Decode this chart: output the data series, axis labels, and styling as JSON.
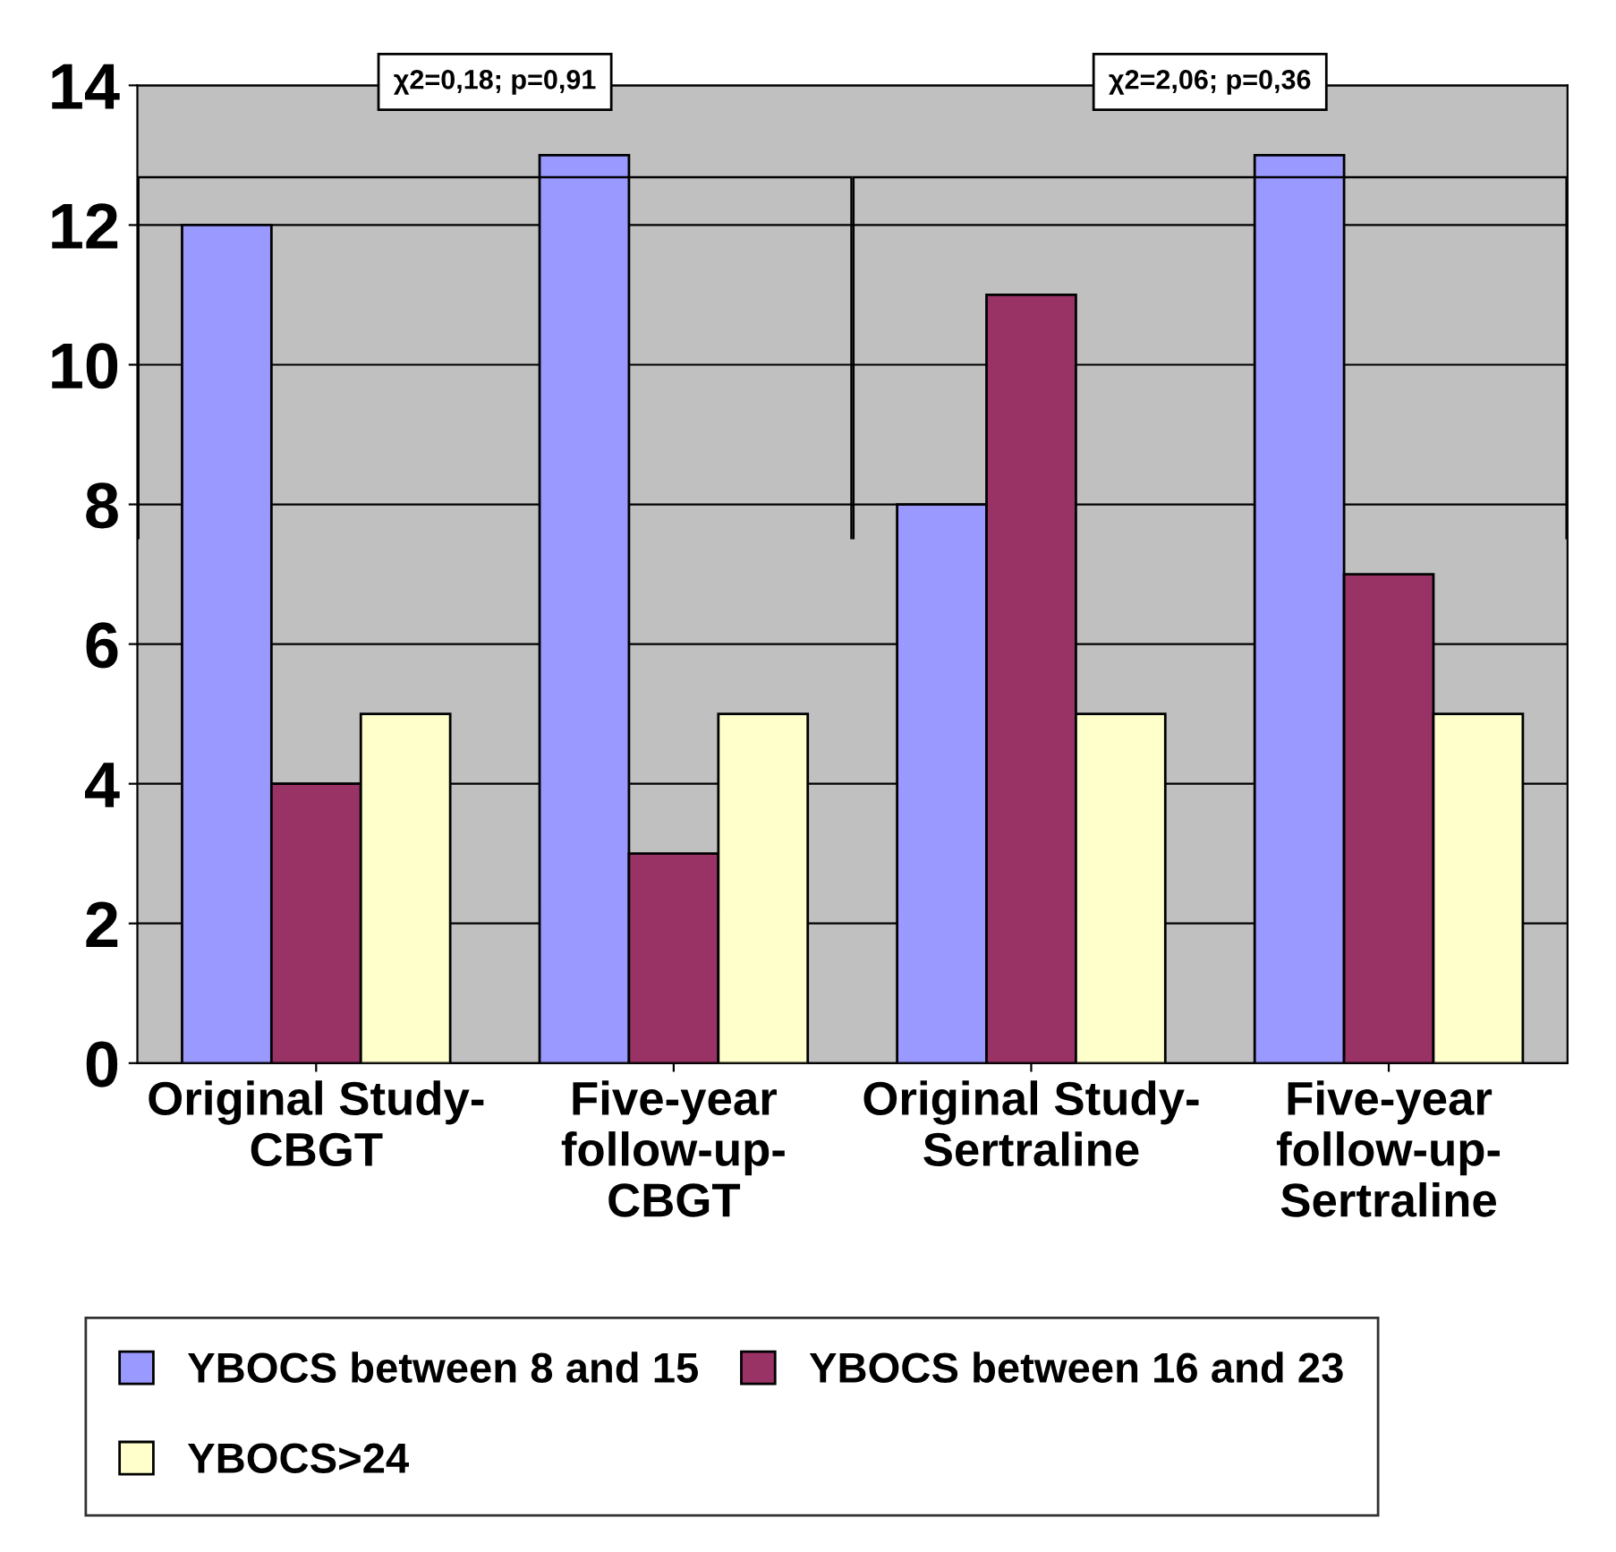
{
  "chart_data": {
    "type": "bar",
    "categories": [
      "Original Study-\nCBGT",
      "Five-year\nfollow-up-\nCBGT",
      "Original Study-\nSertraline",
      "Five-year\nfollow-up-\nSertraline"
    ],
    "series": [
      {
        "name": "YBOCS between 8 and 15",
        "color": "#9999ff",
        "values": [
          12,
          13,
          8,
          13
        ]
      },
      {
        "name": "YBOCS between 16 and 23",
        "color": "#993366",
        "values": [
          4,
          3,
          11,
          7
        ]
      },
      {
        "name": "YBOCS>24",
        "color": "#ffffcc",
        "values": [
          5,
          5,
          5,
          5
        ]
      }
    ],
    "ylim": [
      0,
      14
    ],
    "yticks": [
      0,
      2,
      4,
      6,
      8,
      10,
      12,
      14
    ],
    "grid": "y",
    "legend": "bottom",
    "annotations": [
      "χ2=0,18; p=0,91",
      "χ2=2,06; p=0,36"
    ]
  }
}
